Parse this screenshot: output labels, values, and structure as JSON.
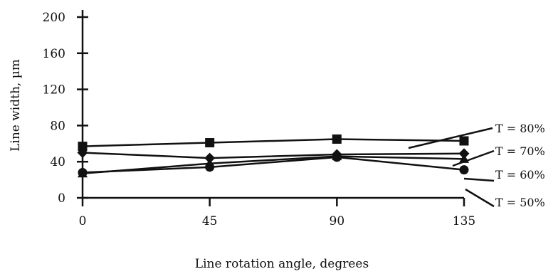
{
  "chart_data": {
    "type": "line",
    "title": "",
    "xlabel": "Line rotation angle, degrees",
    "ylabel": "Line width, µm",
    "x": [
      0,
      45,
      90,
      135
    ],
    "xlim": [
      0,
      135
    ],
    "ylim": [
      0,
      200
    ],
    "xticks": [
      "0",
      "45",
      "90",
      "135"
    ],
    "yticks": [
      "0",
      "40",
      "80",
      "120",
      "160",
      "200"
    ],
    "grid": false,
    "legend_placement": "right, labels with leader lines",
    "series": [
      {
        "name": "T = 80%",
        "marker": "square",
        "values": [
          57,
          61,
          65,
          63
        ]
      },
      {
        "name": "T = 70%",
        "marker": "diamond",
        "values": [
          50,
          44,
          48,
          49
        ]
      },
      {
        "name": "T = 60%",
        "marker": "triangle",
        "values": [
          27,
          38,
          46,
          43
        ]
      },
      {
        "name": "T = 50%",
        "marker": "circle",
        "values": [
          28,
          34,
          45,
          31
        ]
      }
    ],
    "color": "#111111"
  }
}
